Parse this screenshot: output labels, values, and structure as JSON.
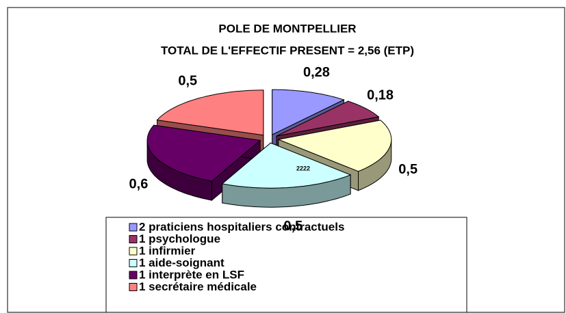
{
  "chart_data": {
    "type": "pie3d",
    "title": "POLE DE MONTPELLIER",
    "subtitle": "TOTAL DE L'EFFECTIF PRESENT = 2,56 (ETP)",
    "annotation": "2222",
    "categories": [
      "2 praticiens hospitaliers contractuels",
      "1 psychologue",
      "1 infirmier",
      "1 aide-soignant",
      "1 interprète en LSF",
      "1 secrétaire médicale"
    ],
    "values": [
      0.28,
      0.18,
      0.5,
      0.5,
      0.6,
      0.5
    ],
    "value_labels": [
      "0,28",
      "0,18",
      "0,5",
      "0,5",
      "0,6",
      "0,5"
    ],
    "colors": [
      "#9999ff",
      "#993366",
      "#ffffcc",
      "#ccffff",
      "#660066",
      "#ff8080"
    ]
  }
}
